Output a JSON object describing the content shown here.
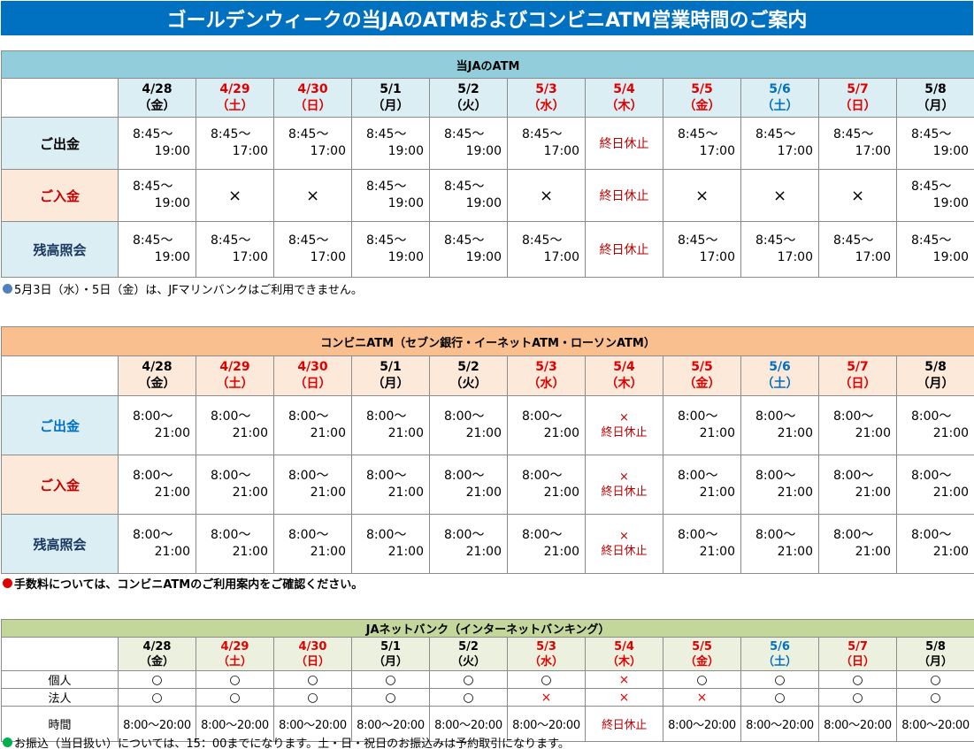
{
  "title": "ゴールデンウィークの当JAのATMおよびコンビニATM営業時間のご案内",
  "colors": {
    "title_bg": "#0070c0",
    "sat_sun_holiday": "#e00000",
    "saturday_blue": "#0070c0",
    "closed": "#c00000"
  },
  "dates": [
    {
      "date": "4/28",
      "day": "（金）",
      "color": "black"
    },
    {
      "date": "4/29",
      "day": "（土）",
      "color": "red"
    },
    {
      "date": "4/30",
      "day": "（日）",
      "color": "red"
    },
    {
      "date": "5/1",
      "day": "（月）",
      "color": "black"
    },
    {
      "date": "5/2",
      "day": "（火）",
      "color": "black"
    },
    {
      "date": "5/3",
      "day": "（水）",
      "color": "red"
    },
    {
      "date": "5/4",
      "day": "（木）",
      "color": "red"
    },
    {
      "date": "5/5",
      "day": "（金）",
      "color": "red"
    },
    {
      "date": "5/6",
      "day": "（土）",
      "color": "blue"
    },
    {
      "date": "5/7",
      "day": "（日）",
      "color": "red"
    },
    {
      "date": "5/8",
      "day": "（月）",
      "color": "black"
    }
  ],
  "ja_atm": {
    "heading": "当JAのATM",
    "rows": [
      {
        "label": "ご出金",
        "cells": [
          {
            "type": "time",
            "start": "8:45〜",
            "end": "19:00"
          },
          {
            "type": "time",
            "start": "8:45〜",
            "end": "17:00"
          },
          {
            "type": "time",
            "start": "8:45〜",
            "end": "17:00"
          },
          {
            "type": "time",
            "start": "8:45〜",
            "end": "19:00"
          },
          {
            "type": "time",
            "start": "8:45〜",
            "end": "19:00"
          },
          {
            "type": "time",
            "start": "8:45〜",
            "end": "17:00"
          },
          {
            "type": "closed",
            "text": "終日休止"
          },
          {
            "type": "time",
            "start": "8:45〜",
            "end": "17:00"
          },
          {
            "type": "time",
            "start": "8:45〜",
            "end": "17:00"
          },
          {
            "type": "time",
            "start": "8:45〜",
            "end": "17:00"
          },
          {
            "type": "time",
            "start": "8:45〜",
            "end": "19:00"
          }
        ]
      },
      {
        "label": "ご入金",
        "cells": [
          {
            "type": "time",
            "start": "8:45〜",
            "end": "19:00"
          },
          {
            "type": "cross",
            "text": "×"
          },
          {
            "type": "cross",
            "text": "×"
          },
          {
            "type": "time",
            "start": "8:45〜",
            "end": "19:00"
          },
          {
            "type": "time",
            "start": "8:45〜",
            "end": "19:00"
          },
          {
            "type": "cross",
            "text": "×"
          },
          {
            "type": "closed",
            "text": "終日休止"
          },
          {
            "type": "cross",
            "text": "×"
          },
          {
            "type": "cross",
            "text": "×"
          },
          {
            "type": "cross",
            "text": "×"
          },
          {
            "type": "time",
            "start": "8:45〜",
            "end": "19:00"
          }
        ]
      },
      {
        "label": "残高照会",
        "cells": [
          {
            "type": "time",
            "start": "8:45〜",
            "end": "19:00"
          },
          {
            "type": "time",
            "start": "8:45〜",
            "end": "17:00"
          },
          {
            "type": "time",
            "start": "8:45〜",
            "end": "17:00"
          },
          {
            "type": "time",
            "start": "8:45〜",
            "end": "19:00"
          },
          {
            "type": "time",
            "start": "8:45〜",
            "end": "19:00"
          },
          {
            "type": "time",
            "start": "8:45〜",
            "end": "17:00"
          },
          {
            "type": "closed",
            "text": "終日休止"
          },
          {
            "type": "time",
            "start": "8:45〜",
            "end": "17:00"
          },
          {
            "type": "time",
            "start": "8:45〜",
            "end": "17:00"
          },
          {
            "type": "time",
            "start": "8:45〜",
            "end": "17:00"
          },
          {
            "type": "time",
            "start": "8:45〜",
            "end": "19:00"
          }
        ]
      }
    ],
    "note": "5月3日（水）・5日（金）は、JFマリンバンクはご利用できません。",
    "note_dot_color": "#4f81bd"
  },
  "conv_atm": {
    "heading": "コンビニATM（セブン銀行・イーネットATM・ローソンATM）",
    "cell_start": "8:00〜",
    "cell_end": "21:00",
    "closed_mark": "×",
    "closed_text": "終日休止",
    "closed_index": 6,
    "labels": [
      "ご出金",
      "ご入金",
      "残高照会"
    ],
    "note": "手数料については、コンビニATMのご利用案内をご確認ください。",
    "note_dot_color": "#e00000"
  },
  "net_bank": {
    "heading": "JAネットバンク（インターネットバンキング）",
    "rows": [
      {
        "label": "個人",
        "cells": [
          "○",
          "○",
          "○",
          "○",
          "○",
          "○",
          "×",
          "○",
          "○",
          "○",
          "○"
        ]
      },
      {
        "label": "法人",
        "cells": [
          "○",
          "○",
          "○",
          "○",
          "○",
          "×",
          "×",
          "×",
          "○",
          "○",
          "○"
        ]
      }
    ],
    "time_label": "時間",
    "time_cells": [
      "8:00〜20:00",
      "8:00〜20:00",
      "8:00〜20:00",
      "8:00〜20:00",
      "8:00〜20:00",
      "8:00〜20:00",
      "終日休止",
      "8:00〜20:00",
      "8:00〜20:00",
      "8:00〜20:00",
      "8:00〜20:00"
    ],
    "note": "お振込（当日扱い）については、15：00までになります。土・日・祝日のお振込みは予約取引になります。",
    "note_dot_color": "#00b050"
  }
}
